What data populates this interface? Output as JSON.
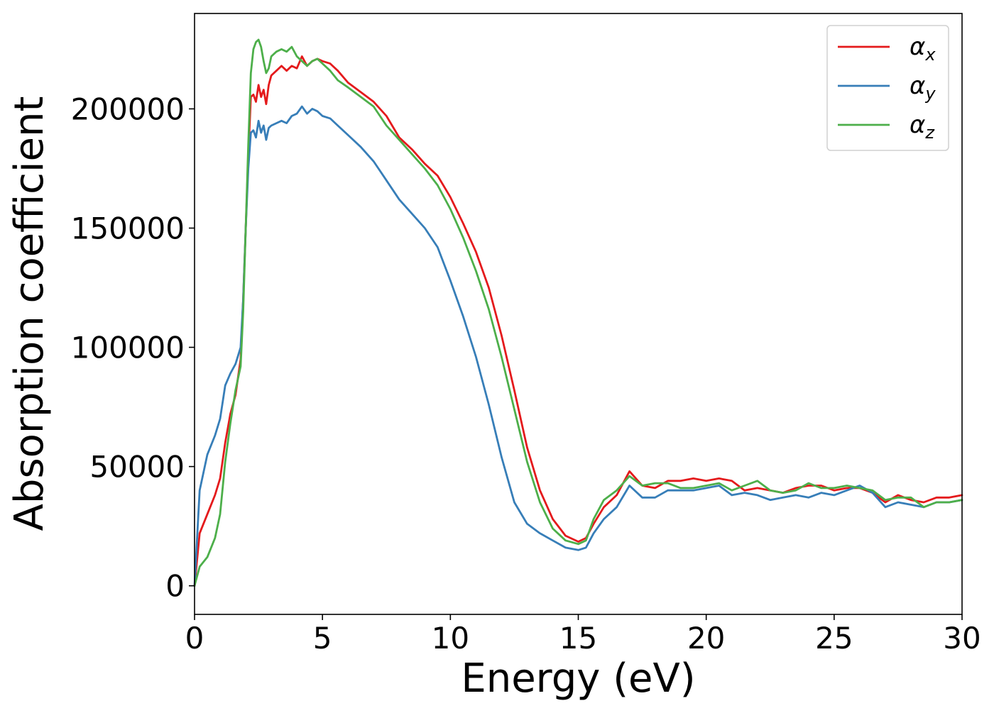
{
  "chart_data": {
    "type": "line",
    "title": "",
    "xlabel": "Energy (eV)",
    "ylabel": "Absorption coefficient",
    "xlim": [
      0,
      30
    ],
    "ylim": [
      -12000,
      240000
    ],
    "xticks": [
      0,
      5,
      10,
      15,
      20,
      25,
      30
    ],
    "xtick_labels": [
      "0",
      "5",
      "10",
      "15",
      "20",
      "25",
      "30"
    ],
    "yticks": [
      0,
      50000,
      100000,
      150000,
      200000
    ],
    "ytick_labels": [
      "0",
      "50000",
      "100000",
      "150000",
      "200000"
    ],
    "grid": false,
    "legend_position": "top-right",
    "series": [
      {
        "name": "αx",
        "symbol": "α",
        "subscript": "x",
        "color": "#e41a1c",
        "x": [
          0,
          0.2,
          0.5,
          0.8,
          1.0,
          1.2,
          1.4,
          1.6,
          1.8,
          1.9,
          2.0,
          2.1,
          2.2,
          2.3,
          2.4,
          2.5,
          2.6,
          2.7,
          2.8,
          2.9,
          3.0,
          3.2,
          3.4,
          3.6,
          3.8,
          4.0,
          4.2,
          4.4,
          4.6,
          4.8,
          5.0,
          5.3,
          5.6,
          6.0,
          6.5,
          7.0,
          7.5,
          8.0,
          8.5,
          9.0,
          9.5,
          10.0,
          10.5,
          11.0,
          11.5,
          12.0,
          12.5,
          13.0,
          13.5,
          14.0,
          14.5,
          15.0,
          15.3,
          15.6,
          16.0,
          16.5,
          17.0,
          17.5,
          18.0,
          18.5,
          19.0,
          19.5,
          20.0,
          20.5,
          21.0,
          21.5,
          22.0,
          22.5,
          23.0,
          23.5,
          24.0,
          24.5,
          25.0,
          25.5,
          26.0,
          26.5,
          27.0,
          27.5,
          28.0,
          28.5,
          29.0,
          29.5,
          30.0
        ],
        "values": [
          0,
          22000,
          30000,
          38000,
          45000,
          60000,
          72000,
          80000,
          95000,
          120000,
          150000,
          180000,
          205000,
          206000,
          203000,
          210000,
          205000,
          208000,
          202000,
          210000,
          214000,
          216000,
          218000,
          216000,
          218000,
          217000,
          222000,
          218000,
          220000,
          221000,
          220000,
          219000,
          216000,
          211000,
          207000,
          203000,
          197000,
          188000,
          183000,
          177000,
          172000,
          163000,
          152000,
          140000,
          125000,
          105000,
          82000,
          58000,
          40000,
          28000,
          21000,
          18500,
          20000,
          26000,
          33000,
          38000,
          48000,
          42000,
          41000,
          44000,
          44000,
          45000,
          44000,
          45000,
          44000,
          40000,
          41000,
          40000,
          39000,
          41000,
          42000,
          42000,
          40000,
          41000,
          41000,
          39000,
          35000,
          38000,
          36000,
          35000,
          37000,
          37000,
          38000
        ]
      },
      {
        "name": "αy",
        "symbol": "α",
        "subscript": "y",
        "color": "#377eb8",
        "x": [
          0,
          0.2,
          0.5,
          0.8,
          1.0,
          1.2,
          1.4,
          1.6,
          1.8,
          1.9,
          2.0,
          2.1,
          2.2,
          2.3,
          2.4,
          2.5,
          2.6,
          2.7,
          2.8,
          2.9,
          3.0,
          3.2,
          3.4,
          3.6,
          3.8,
          4.0,
          4.2,
          4.4,
          4.6,
          4.8,
          5.0,
          5.3,
          5.6,
          6.0,
          6.5,
          7.0,
          7.5,
          8.0,
          8.5,
          9.0,
          9.5,
          10.0,
          10.5,
          11.0,
          11.5,
          12.0,
          12.5,
          13.0,
          13.5,
          14.0,
          14.5,
          15.0,
          15.3,
          15.6,
          16.0,
          16.5,
          17.0,
          17.5,
          18.0,
          18.5,
          19.0,
          19.5,
          20.0,
          20.5,
          21.0,
          21.5,
          22.0,
          22.5,
          23.0,
          23.5,
          24.0,
          24.5,
          25.0,
          25.5,
          26.0,
          26.5,
          27.0,
          27.5,
          28.0,
          28.5,
          29.0,
          29.5,
          30.0
        ],
        "values": [
          0,
          40000,
          55000,
          63000,
          70000,
          84000,
          89000,
          93000,
          100000,
          120000,
          150000,
          175000,
          190000,
          191000,
          188000,
          195000,
          190000,
          193000,
          187000,
          192000,
          193000,
          194000,
          195000,
          194000,
          197000,
          198000,
          201000,
          198000,
          200000,
          199000,
          197000,
          196000,
          193000,
          189000,
          184000,
          178000,
          170000,
          162000,
          156000,
          150000,
          142000,
          128000,
          113000,
          96000,
          76000,
          54000,
          35000,
          26000,
          22000,
          19000,
          16000,
          15000,
          16000,
          22000,
          28000,
          33000,
          42000,
          37000,
          37000,
          40000,
          40000,
          40000,
          41000,
          42000,
          38000,
          39000,
          38000,
          36000,
          37000,
          38000,
          37000,
          39000,
          38000,
          40000,
          42000,
          39000,
          33000,
          35000,
          34000,
          33000,
          35000,
          35000,
          36000
        ]
      },
      {
        "name": "αz",
        "symbol": "α",
        "subscript": "z",
        "color": "#4daf4a",
        "x": [
          0,
          0.2,
          0.5,
          0.8,
          1.0,
          1.2,
          1.4,
          1.6,
          1.8,
          1.9,
          2.0,
          2.1,
          2.2,
          2.3,
          2.4,
          2.5,
          2.6,
          2.7,
          2.8,
          2.9,
          3.0,
          3.2,
          3.4,
          3.6,
          3.8,
          4.0,
          4.2,
          4.4,
          4.6,
          4.8,
          5.0,
          5.3,
          5.6,
          6.0,
          6.5,
          7.0,
          7.5,
          8.0,
          8.5,
          9.0,
          9.5,
          10.0,
          10.5,
          11.0,
          11.5,
          12.0,
          12.5,
          13.0,
          13.5,
          14.0,
          14.5,
          15.0,
          15.3,
          15.6,
          16.0,
          16.5,
          17.0,
          17.5,
          18.0,
          18.5,
          19.0,
          19.5,
          20.0,
          20.5,
          21.0,
          21.5,
          22.0,
          22.5,
          23.0,
          23.5,
          24.0,
          24.5,
          25.0,
          25.5,
          26.0,
          26.5,
          27.0,
          27.5,
          28.0,
          28.5,
          29.0,
          29.5,
          30.0
        ],
        "values": [
          0,
          8000,
          12000,
          20000,
          30000,
          52000,
          68000,
          82000,
          92000,
          115000,
          150000,
          185000,
          215000,
          225000,
          228000,
          229000,
          226000,
          220000,
          215000,
          217000,
          222000,
          224000,
          225000,
          224000,
          226000,
          222000,
          220000,
          218000,
          220000,
          221000,
          219000,
          216000,
          212000,
          209000,
          205000,
          201000,
          193000,
          187000,
          181000,
          175000,
          168000,
          158000,
          146000,
          132000,
          116000,
          96000,
          74000,
          52000,
          35000,
          24000,
          19000,
          17500,
          19000,
          28000,
          36000,
          40000,
          46000,
          42000,
          43000,
          43000,
          41000,
          41000,
          42000,
          43000,
          40000,
          42000,
          44000,
          40000,
          39000,
          40000,
          43000,
          41000,
          41000,
          42000,
          41000,
          40000,
          36000,
          37000,
          37000,
          33000,
          35000,
          35000,
          36000
        ]
      }
    ]
  }
}
